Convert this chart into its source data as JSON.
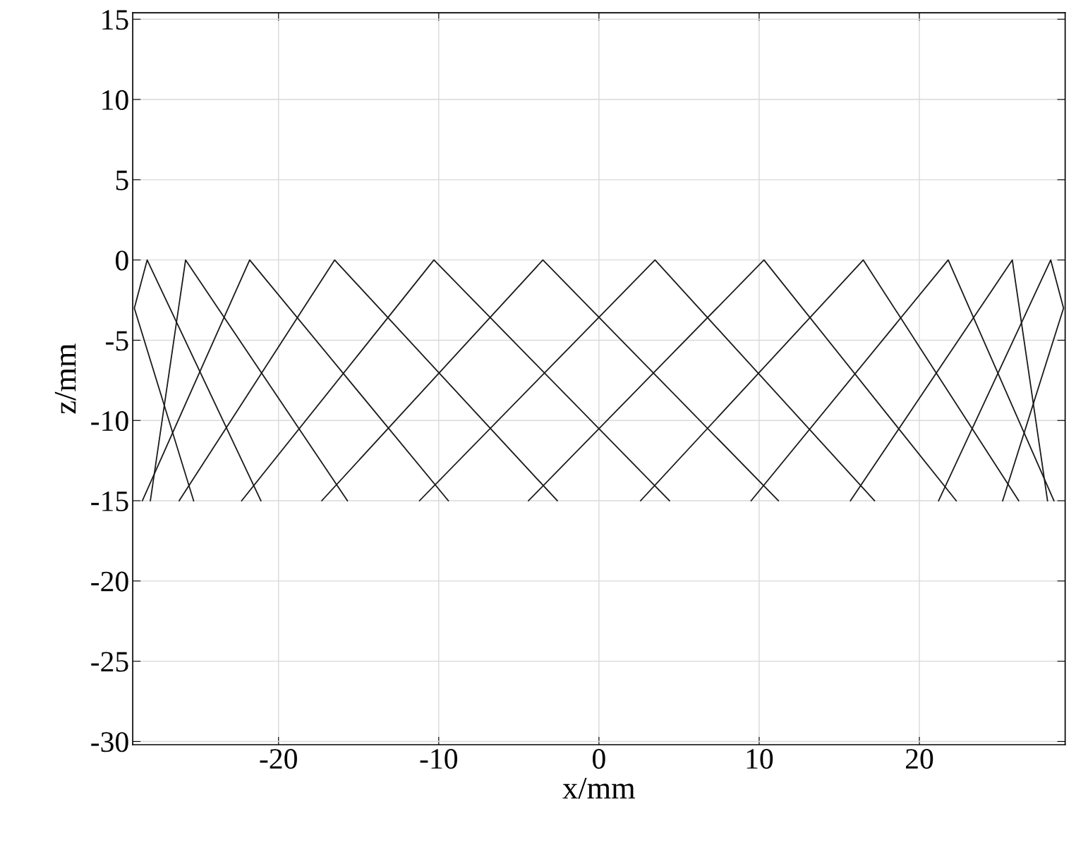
{
  "chart_data": {
    "type": "line",
    "xlabel": "x/mm",
    "ylabel": "z/mm",
    "xlim": [
      -29.1,
      29.1
    ],
    "ylim": [
      -30.2,
      15.4
    ],
    "xticks": [
      -20,
      -10,
      0,
      10,
      20
    ],
    "yticks": [
      -30,
      -25,
      -20,
      -15,
      -10,
      -5,
      0,
      5,
      10,
      15
    ],
    "grid": true,
    "marker": "none",
    "line_style": "solid",
    "series": [
      {
        "color": "#1a1a1a",
        "x": [
          -25.3,
          -29.0,
          -28.2,
          -21.1
        ],
        "values": [
          -15,
          -3,
          0,
          -15
        ]
      },
      {
        "color": "#1a1a1a",
        "x": [
          -28.0,
          -25.8,
          -15.7
        ],
        "values": [
          -15,
          0,
          -15
        ]
      },
      {
        "color": "#1a1a1a",
        "x": [
          -28.5,
          -21.8,
          -9.4
        ],
        "values": [
          -15,
          0,
          -15
        ]
      },
      {
        "color": "#1a1a1a",
        "x": [
          -26.2,
          -16.5,
          -2.6
        ],
        "values": [
          -15,
          0,
          -15
        ]
      },
      {
        "color": "#1a1a1a",
        "x": [
          -22.3,
          -10.3,
          4.4
        ],
        "values": [
          -15,
          0,
          -15
        ]
      },
      {
        "color": "#1a1a1a",
        "x": [
          -17.3,
          -3.5,
          11.2
        ],
        "values": [
          -15,
          0,
          -15
        ]
      },
      {
        "color": "#1a1a1a",
        "x": [
          -11.2,
          3.5,
          17.2
        ],
        "values": [
          -15,
          0,
          -15
        ]
      },
      {
        "color": "#1a1a1a",
        "x": [
          -4.4,
          10.3,
          22.3
        ],
        "values": [
          -15,
          0,
          -15
        ]
      },
      {
        "color": "#1a1a1a",
        "x": [
          2.6,
          16.5,
          26.2
        ],
        "values": [
          -15,
          0,
          -15
        ]
      },
      {
        "color": "#1a1a1a",
        "x": [
          9.5,
          21.8,
          28.4
        ],
        "values": [
          -15,
          0,
          -15
        ]
      },
      {
        "color": "#1a1a1a",
        "x": [
          15.7,
          25.8,
          28.0
        ],
        "values": [
          -15,
          0,
          -15
        ]
      },
      {
        "color": "#1a1a1a",
        "x": [
          21.2,
          28.2,
          29.0,
          25.2
        ],
        "values": [
          -15,
          0,
          -3,
          -15
        ]
      }
    ]
  }
}
